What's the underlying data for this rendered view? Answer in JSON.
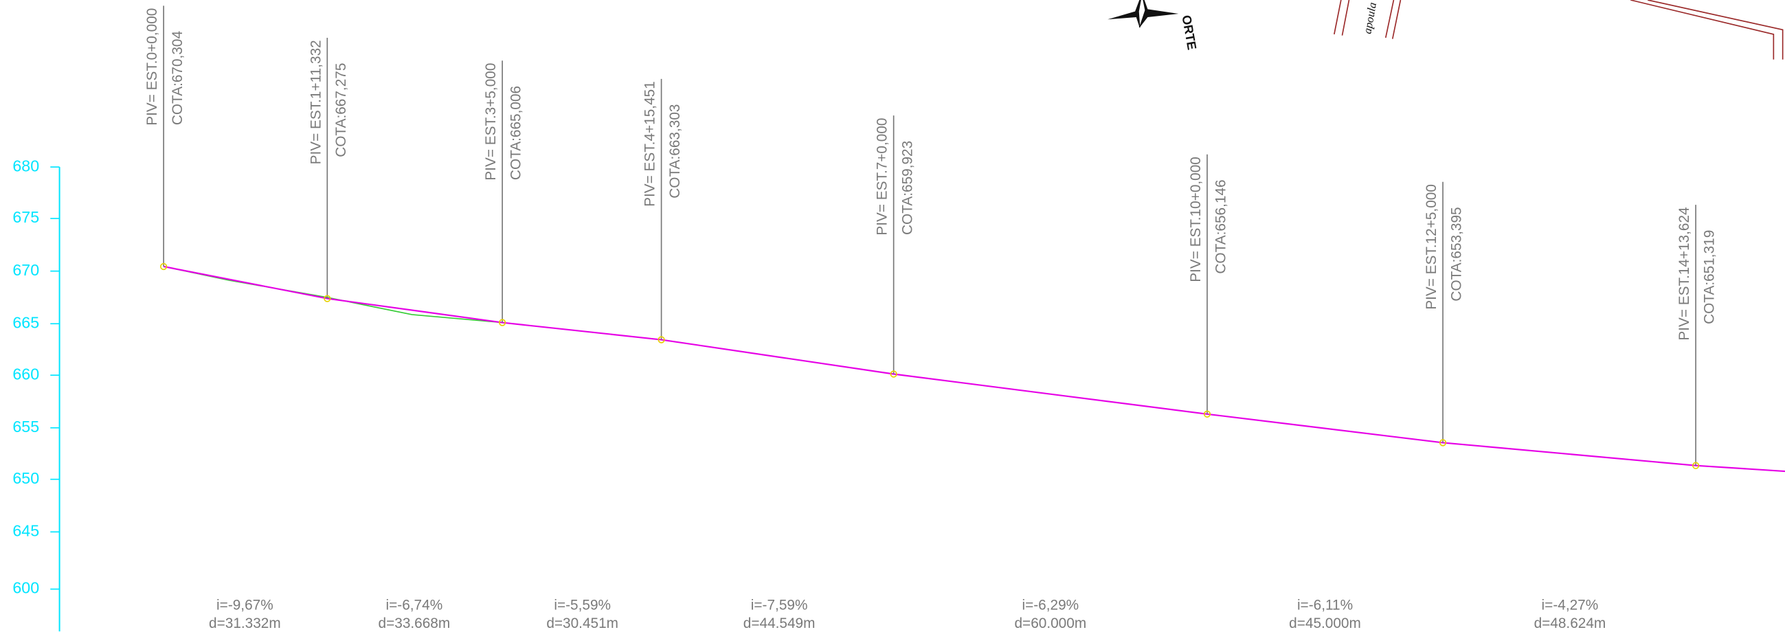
{
  "y_axis": {
    "ticks": [
      "680",
      "675",
      "670",
      "665",
      "660",
      "655",
      "650",
      "645",
      "600"
    ]
  },
  "pivs": [
    {
      "station": "PIV= EST.0+0,000",
      "cota": "COTA:670,304"
    },
    {
      "station": "PIV= EST.1+11,332",
      "cota": "COTA:667,275"
    },
    {
      "station": "PIV= EST.3+5,000",
      "cota": "COTA:665,006"
    },
    {
      "station": "PIV= EST.4+15,451",
      "cota": "COTA:663,303"
    },
    {
      "station": "PIV= EST.7+0,000",
      "cota": "COTA:659,923"
    },
    {
      "station": "PIV= EST.10+0,000",
      "cota": "COTA:656,146"
    },
    {
      "station": "PIV= EST.12+5,000",
      "cota": "COTA:653,395"
    },
    {
      "station": "PIV= EST.14+13,624",
      "cota": "COTA:651,319"
    }
  ],
  "segments": [
    {
      "slope": "i=-9,67%",
      "distance": "d=31.332m"
    },
    {
      "slope": "i=-6,74%",
      "distance": "d=33.668m"
    },
    {
      "slope": "i=-5,59%",
      "distance": "d=30.451m"
    },
    {
      "slope": "i=-7,59%",
      "distance": "d=44.549m"
    },
    {
      "slope": "i=-6,29%",
      "distance": "d=60.000m"
    },
    {
      "slope": "i=-6,11%",
      "distance": "d=45.000m"
    },
    {
      "slope": "i=-4,27%",
      "distance": "d=48.624m"
    }
  ],
  "north": "ORTE",
  "map_note": "apoula"
}
